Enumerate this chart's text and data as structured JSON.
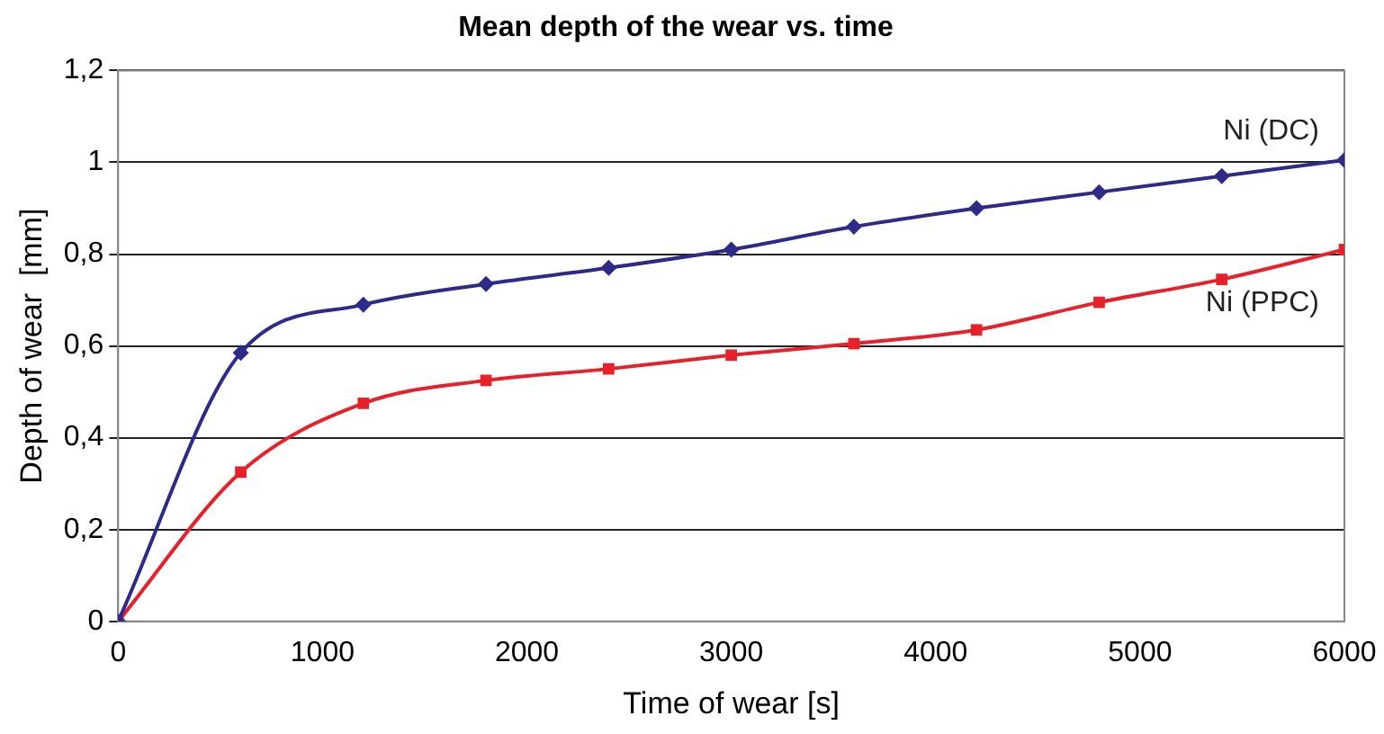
{
  "chart_data": {
    "type": "line",
    "title": "Mean depth of the wear vs. time",
    "xlabel": "Time of wear [s]",
    "ylabel": "Depth of wear  [mm]",
    "x": [
      0,
      600,
      1200,
      1800,
      2400,
      3000,
      3600,
      4200,
      4800,
      5400,
      6000
    ],
    "series": [
      {
        "name": "Ni (DC)",
        "color": "#2e2a8a",
        "marker": "diamond",
        "values": [
          0,
          0.585,
          0.69,
          0.735,
          0.77,
          0.81,
          0.86,
          0.9,
          0.935,
          0.97,
          1.005
        ]
      },
      {
        "name": "Ni (PPC)",
        "color": "#e8202a",
        "marker": "square",
        "values": [
          0,
          0.325,
          0.475,
          0.525,
          0.55,
          0.58,
          0.605,
          0.635,
          0.695,
          0.745,
          0.81
        ]
      }
    ],
    "xlim": [
      0,
      6000
    ],
    "xticks": [
      0,
      1000,
      2000,
      3000,
      4000,
      5000,
      6000
    ],
    "ylim": [
      0,
      1.2
    ],
    "yticks": [
      {
        "value": 0,
        "label": "0"
      },
      {
        "value": 0.2,
        "label": "0,2"
      },
      {
        "value": 0.4,
        "label": "0,4"
      },
      {
        "value": 0.6,
        "label": "0,6"
      },
      {
        "value": 0.8,
        "label": "0,8"
      },
      {
        "value": 1,
        "label": "1"
      },
      {
        "value": 1.2,
        "label": "1,2"
      }
    ],
    "grid": "y",
    "legend": false,
    "line_style": "solid"
  }
}
